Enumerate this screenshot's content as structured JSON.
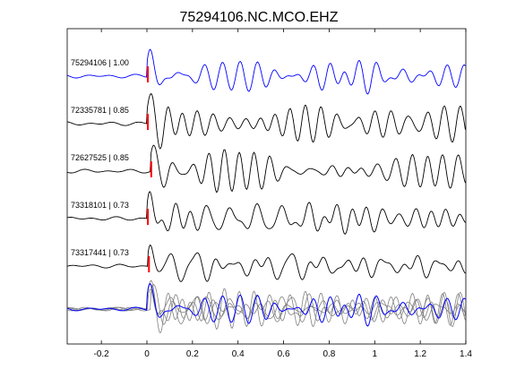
{
  "chart_data": {
    "type": "line",
    "title": "75294106.NC.MCO.EHZ",
    "xlabel": "",
    "ylabel": "",
    "xlim": [
      -0.35,
      1.4
    ],
    "xticks": [
      -0.2,
      0,
      0.2,
      0.4,
      0.6,
      0.8,
      1,
      1.2,
      1.4
    ],
    "xtick_labels": [
      "-0.2",
      "0",
      "0.2",
      "0.4",
      "0.6",
      "0.8",
      "1",
      "1.2",
      "1.4"
    ],
    "grid": false,
    "colors": {
      "reference": "#0000ff",
      "trace": "#000000",
      "overlay": "#808080",
      "pick_marker": "#ff0000"
    },
    "series": [
      {
        "name": "75294106 | 1.00",
        "pick_time": 0.0,
        "reference": true,
        "seed": 11
      },
      {
        "name": "72335781 | 0.85",
        "pick_time": 0.0,
        "reference": false,
        "seed": 23
      },
      {
        "name": "72627525 | 0.85",
        "pick_time": 0.015,
        "reference": false,
        "seed": 37
      },
      {
        "name": "73318101 | 0.73",
        "pick_time": 0.0,
        "reference": false,
        "seed": 41
      },
      {
        "name": "73317441 | 0.73",
        "pick_time": 0.005,
        "reference": false,
        "seed": 53
      }
    ],
    "stacked_overlay": true
  }
}
